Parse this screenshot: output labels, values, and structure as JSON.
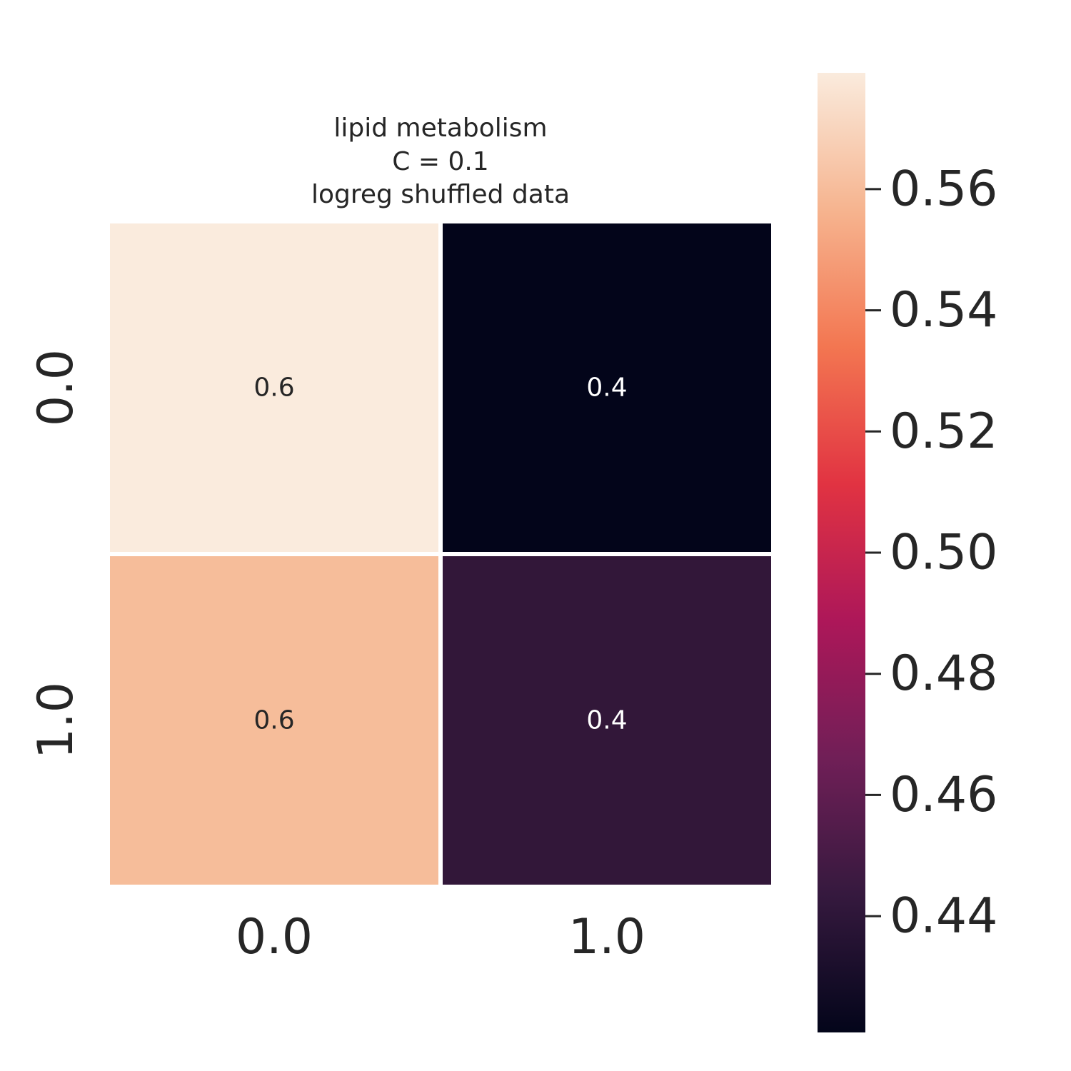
{
  "chart_data": {
    "type": "heatmap",
    "title": [
      "lipid metabolism",
      "C = 0.1",
      "logreg shuffled data"
    ],
    "x_categories": [
      "0.0",
      "1.0"
    ],
    "y_categories": [
      "0.0",
      "1.0"
    ],
    "values": [
      [
        0.575,
        0.425
      ],
      [
        0.555,
        0.437
      ]
    ],
    "annotations": [
      [
        "0.6",
        "0.4"
      ],
      [
        "0.6",
        "0.4"
      ]
    ],
    "colorbar": {
      "range": [
        0.4208,
        0.5792
      ],
      "ticks": [
        0.56,
        0.54,
        0.52,
        0.5,
        0.48,
        0.46,
        0.44
      ],
      "tick_labels": [
        "0.56",
        "0.54",
        "0.52",
        "0.50",
        "0.48",
        "0.46",
        "0.44"
      ],
      "colormap": "rocket",
      "colormap_stops": [
        "#03051a",
        "#35193e",
        "#701f57",
        "#ad1759",
        "#e13342",
        "#f37651",
        "#f6b48f",
        "#faebdd"
      ]
    },
    "cell_colors": [
      [
        "#faebdd",
        "#03051a"
      ],
      [
        "#f6bd9a",
        "#321739"
      ]
    ],
    "annotation_colors": [
      [
        "#262626",
        "#ffffff"
      ],
      [
        "#262626",
        "#ffffff"
      ]
    ]
  }
}
